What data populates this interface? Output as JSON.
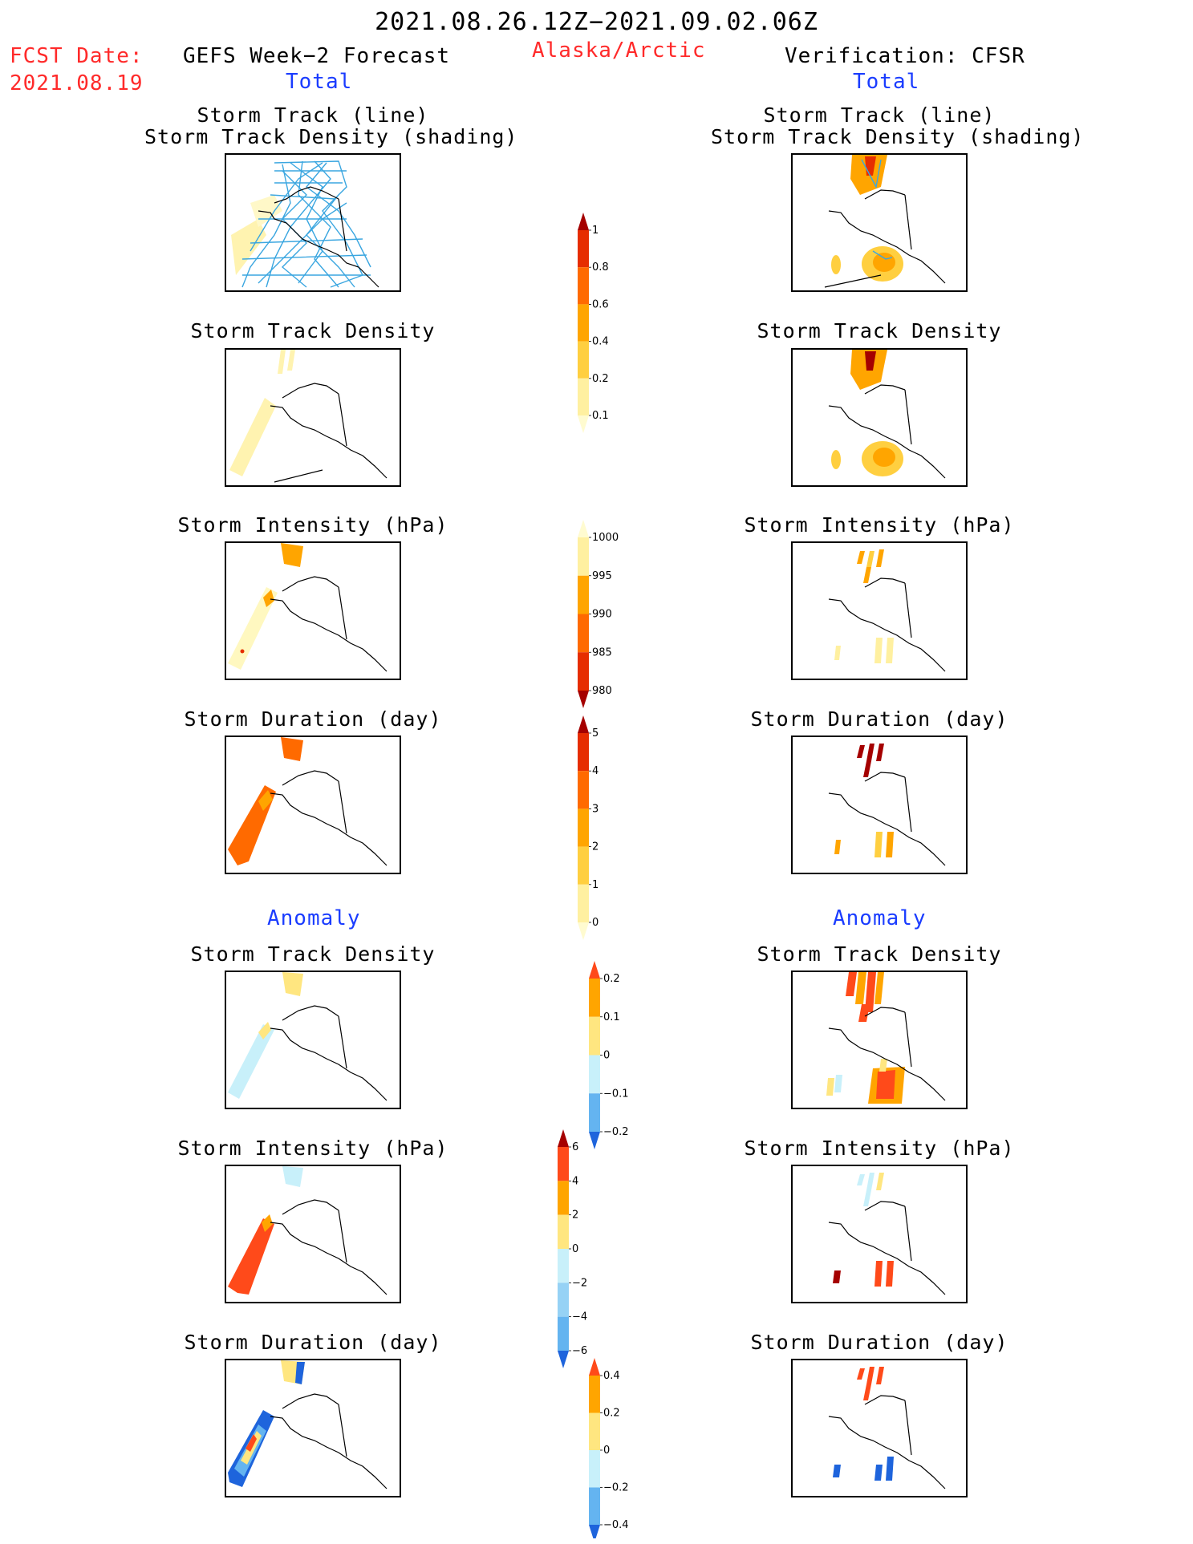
{
  "header": {
    "period": "2021.08.26.12Z−2021.09.02.06Z",
    "region": "Alaska/Arctic",
    "fcst_label": "FCST Date:",
    "fcst_date": "2021.08.19",
    "left_title": "GEFS Week−2 Forecast",
    "right_title": "Verification: CFSR",
    "left_total": "Total",
    "right_total": "Total",
    "left_anomaly": "Anomaly",
    "right_anomaly": "Anomaly"
  },
  "panels": [
    {
      "id": "track",
      "caption1": "Storm Track (line)",
      "caption2": "Storm Track Density (shading)"
    },
    {
      "id": "density",
      "caption1": "Storm Track Density"
    },
    {
      "id": "intensity",
      "caption1": "Storm Intensity (hPa)"
    },
    {
      "id": "duration",
      "caption1": "Storm Duration (day)"
    },
    {
      "id": "anom_density",
      "caption1": "Storm Track Density"
    },
    {
      "id": "anom_intensity",
      "caption1": "Storm Intensity (hPa)"
    },
    {
      "id": "anom_duration",
      "caption1": "Storm Duration (day)"
    }
  ],
  "colorbars": [
    {
      "id": "density",
      "labels": [
        "1",
        "0.8",
        "0.6",
        "0.4",
        "0.2",
        "0.1"
      ],
      "colors": [
        "#a50000",
        "#e62d00",
        "#ff6a00",
        "#ffa500",
        "#ffcf40",
        "#fff0a0",
        "#fffbd0"
      ],
      "open": "bottom"
    },
    {
      "id": "intensity",
      "labels": [
        "1000",
        "995",
        "990",
        "985",
        "980"
      ],
      "colors": [
        "#fffbd0",
        "#fff0a0",
        "#ffa500",
        "#ff6a00",
        "#e62d00",
        "#a50000"
      ],
      "open": "top"
    },
    {
      "id": "duration",
      "labels": [
        "5",
        "4",
        "3",
        "2",
        "1",
        "0"
      ],
      "colors": [
        "#a50000",
        "#e62d00",
        "#ff6a00",
        "#ffa500",
        "#ffcf40",
        "#fff0a0",
        "#fffbd0"
      ],
      "open": "bottom"
    },
    {
      "id": "anom_density",
      "labels": [
        "0.2",
        "0.1",
        "0",
        "−0.1",
        "−0.2"
      ],
      "colors": [
        "#ff4a1a",
        "#ffa500",
        "#ffe680",
        "#c8f0fa",
        "#64b4f0",
        "#1e64dc"
      ],
      "open": "none"
    },
    {
      "id": "anom_intensity",
      "labels": [
        "6",
        "4",
        "2",
        "0",
        "−2",
        "−4",
        "−6"
      ],
      "colors": [
        "#a50000",
        "#ff4a1a",
        "#ffa500",
        "#ffe680",
        "#c8f0fa",
        "#96d2f5",
        "#64b4f0",
        "#1e64dc"
      ],
      "open": "none"
    },
    {
      "id": "anom_duration",
      "labels": [
        "0.4",
        "0.2",
        "0",
        "−0.2",
        "−0.4"
      ],
      "colors": [
        "#ff4a1a",
        "#ffa500",
        "#ffe680",
        "#c8f0fa",
        "#64b4f0",
        "#1e64dc"
      ],
      "open": "none"
    }
  ]
}
